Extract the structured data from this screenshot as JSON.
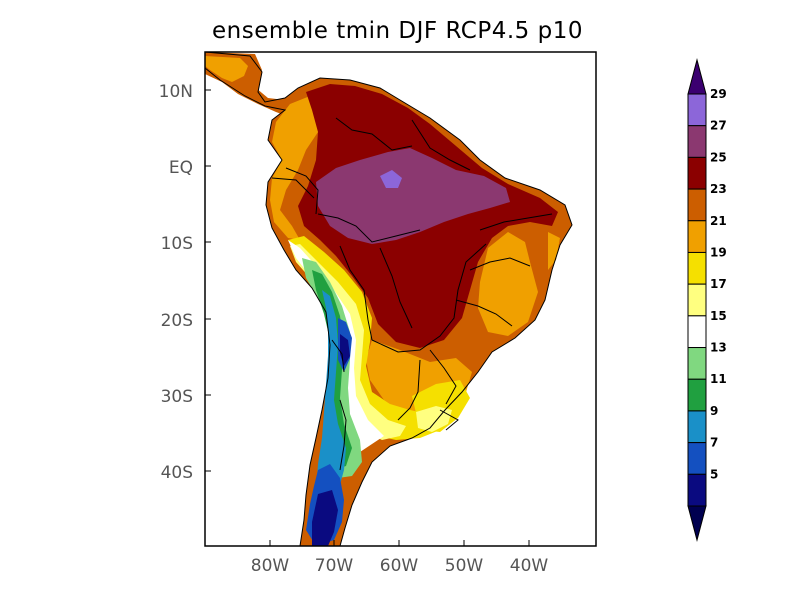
{
  "title": "ensemble tmin DJF RCP4.5 p10",
  "lat_ticks": [
    "10N",
    "EQ",
    "10S",
    "20S",
    "30S",
    "40S"
  ],
  "lon_ticks": [
    "80W",
    "70W",
    "60W",
    "50W",
    "40W"
  ],
  "colorbar": {
    "labels": [
      "29",
      "27",
      "25",
      "23",
      "21",
      "19",
      "17",
      "15",
      "13",
      "11",
      "9",
      "7",
      "5"
    ],
    "colors": [
      "#8c66d9",
      "#8b3870",
      "#8b0000",
      "#cc5e00",
      "#f0a000",
      "#f5e000",
      "#ffff80",
      "#ffffff",
      "#80d880",
      "#20a040",
      "#1a90c8",
      "#1450c0",
      "#0a0a80"
    ],
    "cap_top_color": "#3b0070",
    "cap_bottom_color": "#000050"
  }
}
